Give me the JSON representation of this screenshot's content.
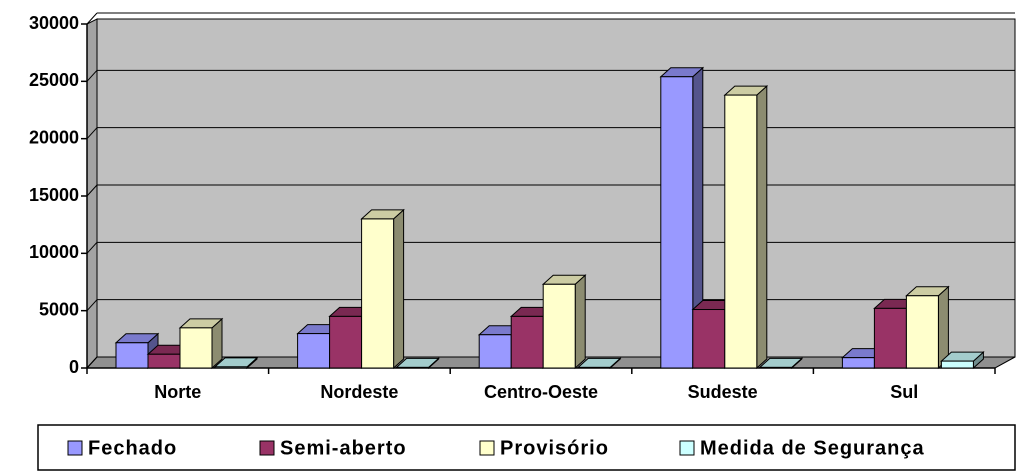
{
  "chart_data": {
    "type": "bar3d",
    "categories": [
      "Norte",
      "Nordeste",
      "Centro-Oeste",
      "Sudeste",
      "Sul"
    ],
    "series": [
      {
        "name": "Fechado",
        "color": "#9999ff",
        "values": [
          2200,
          3000,
          2900,
          25400,
          900
        ]
      },
      {
        "name": "Semi-aberto",
        "color": "#993366",
        "values": [
          1200,
          4500,
          4500,
          5100,
          5200
        ]
      },
      {
        "name": "Provisório",
        "color": "#ffffcc",
        "values": [
          3500,
          13000,
          7300,
          23800,
          6300
        ]
      },
      {
        "name": "Medida de Segurança",
        "color": "#ccffff",
        "values": [
          100,
          50,
          50,
          50,
          600
        ]
      }
    ],
    "ylim": [
      0,
      30000
    ],
    "yticks": [
      0,
      5000,
      10000,
      15000,
      20000,
      25000,
      30000
    ],
    "grid": true,
    "legend": "bottom",
    "background": "#c0c0c0"
  }
}
